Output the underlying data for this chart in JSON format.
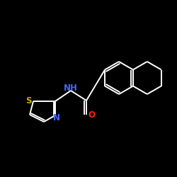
{
  "background_color": "#000000",
  "bond_color": "#ffffff",
  "atom_colors": {
    "S": "#ccaa00",
    "N": "#4466ff",
    "O": "#ff2200",
    "C": "#ffffff"
  },
  "lw": 1.4,
  "fs": 8.5
}
